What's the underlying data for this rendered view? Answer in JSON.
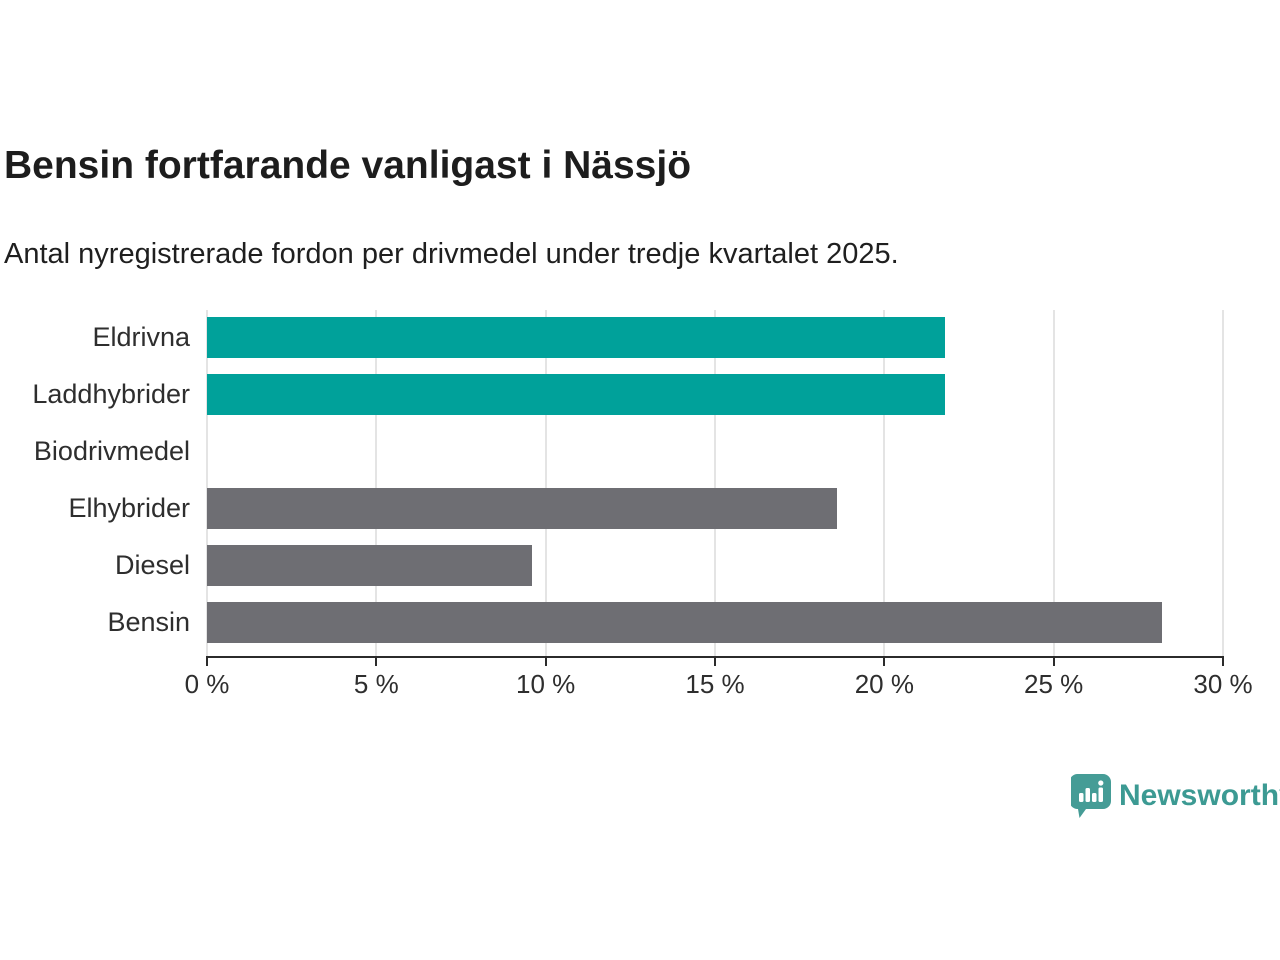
{
  "header": {
    "title": "Bensin fortfarande vanligast i Nässjö",
    "subtitle": "Antal nyregistrerade fordon per drivmedel under tredje kvartalet 2025."
  },
  "chart_data": {
    "type": "bar",
    "orientation": "horizontal",
    "title": "Bensin fortfarande vanligast i Nässjö",
    "subtitle": "Antal nyregistrerade fordon per drivmedel under tredje kvartalet 2025.",
    "categories": [
      "Eldrivna",
      "Laddhybrider",
      "Biodrivmedel",
      "Elhybrider",
      "Diesel",
      "Bensin"
    ],
    "values": [
      21.8,
      21.8,
      0,
      18.6,
      9.6,
      28.2
    ],
    "unit": "%",
    "xlim": [
      0,
      30
    ],
    "x_tick_labels": [
      "0 %",
      "5 %",
      "10 %",
      "15 %",
      "20 %",
      "25 %",
      "30 %"
    ],
    "x_tick_values": [
      0,
      5,
      10,
      15,
      20,
      25,
      30
    ],
    "grid": "vertical",
    "legend": "none",
    "highlight_color": "#00a19a",
    "base_color": "#6e6e73",
    "bar_colors": [
      "#00a19a",
      "#00a19a",
      "#6e6e73",
      "#6e6e73",
      "#6e6e73",
      "#6e6e73"
    ]
  },
  "footer": {
    "brand": "Newsworthy",
    "brand_color": "#3c9a93",
    "logo_icon": "speech-bubble-bar-chart-exclamation"
  }
}
